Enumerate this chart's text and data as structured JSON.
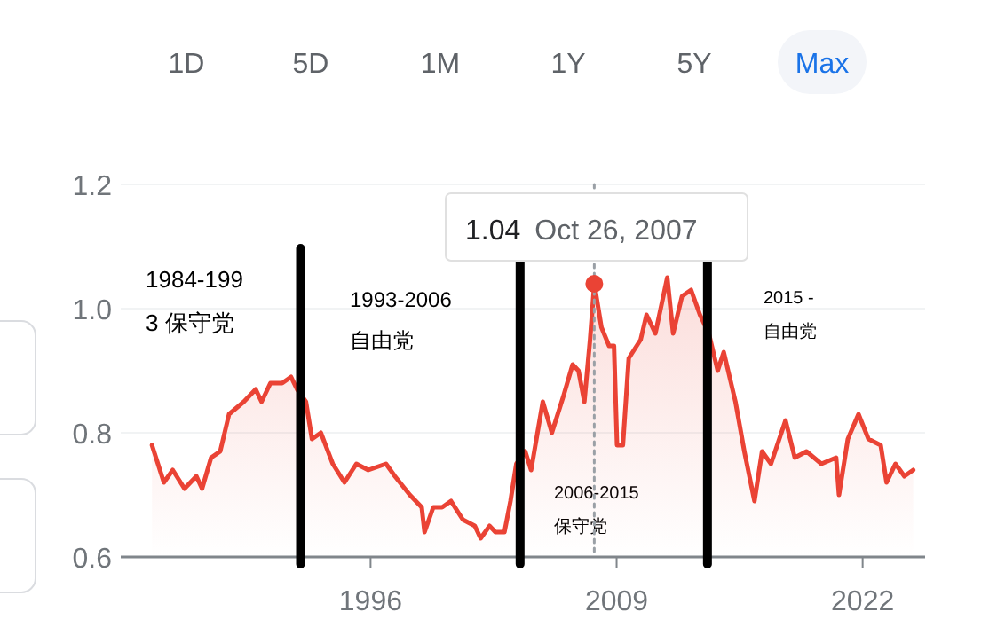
{
  "chart_data": {
    "type": "area",
    "x": [
      1984.45,
      1985.08,
      1985.55,
      1986.17,
      1986.8,
      1987.1,
      1987.58,
      1988.05,
      1988.52,
      1989.3,
      1989.93,
      1990.24,
      1990.71,
      1991.33,
      1991.8,
      1992.12,
      1992.59,
      1992.9,
      1993.37,
      1994.0,
      1994.62,
      1995.25,
      1995.88,
      1996.82,
      1997.29,
      1998.07,
      1998.7,
      1998.85,
      1999.31,
      1999.78,
      2000.25,
      2000.88,
      2001.51,
      2001.82,
      2002.29,
      2002.6,
      2003.07,
      2003.39,
      2003.7,
      2004.17,
      2004.48,
      2005.1,
      2005.58,
      2006.2,
      2006.68,
      2006.99,
      2007.3,
      2007.6,
      2007.82,
      2008.2,
      2008.6,
      2008.86,
      2009.02,
      2009.33,
      2009.64,
      2010.27,
      2010.58,
      2011.05,
      2011.68,
      2011.99,
      2012.46,
      2012.93,
      2013.4,
      2013.87,
      2014.34,
      2014.66,
      2015.28,
      2015.75,
      2016.28,
      2016.69,
      2017.16,
      2017.93,
      2018.41,
      2019.03,
      2019.82,
      2020.6,
      2020.75,
      2021.22,
      2021.78,
      2022.31,
      2022.95,
      2023.26,
      2023.73,
      2024.2,
      2024.67
    ],
    "series": [
      {
        "color": "#ea4335",
        "values": [
          0.78,
          0.72,
          0.74,
          0.71,
          0.73,
          0.71,
          0.76,
          0.77,
          0.83,
          0.85,
          0.87,
          0.85,
          0.88,
          0.88,
          0.89,
          0.87,
          0.85,
          0.79,
          0.8,
          0.75,
          0.72,
          0.75,
          0.74,
          0.75,
          0.73,
          0.7,
          0.68,
          0.64,
          0.68,
          0.68,
          0.69,
          0.66,
          0.65,
          0.63,
          0.65,
          0.64,
          0.64,
          0.69,
          0.75,
          0.77,
          0.74,
          0.85,
          0.8,
          0.86,
          0.91,
          0.9,
          0.85,
          0.95,
          1.04,
          0.97,
          0.94,
          0.94,
          0.78,
          0.78,
          0.92,
          0.95,
          0.99,
          0.96,
          1.05,
          0.96,
          1.02,
          1.03,
          0.99,
          0.96,
          0.9,
          0.93,
          0.85,
          0.77,
          0.69,
          0.77,
          0.75,
          0.82,
          0.76,
          0.77,
          0.75,
          0.76,
          0.7,
          0.79,
          0.83,
          0.79,
          0.78,
          0.72,
          0.75,
          0.73,
          0.74
        ]
      }
    ],
    "xlim": [
      1982.8,
      2025.3
    ],
    "xticks": [
      1996,
      2009,
      2022
    ],
    "ylim": [
      0.6,
      1.2
    ],
    "yticks": [
      0.6,
      0.8,
      {
        "value": 1,
        "label": "1.0"
      },
      1.2
    ],
    "grid": "y",
    "ref_lines": [
      {
        "axis": "x",
        "value": 1992.3,
        "color": "#000000"
      },
      {
        "axis": "x",
        "value": 2003.9,
        "color": "#000000"
      },
      {
        "axis": "x",
        "value": 2013.8,
        "color": "#000000"
      },
      {
        "axis": "x",
        "value": 2007.82,
        "color": "#9aa0a6",
        "line_style": "dotted"
      }
    ],
    "annotations": [
      "1984-199\n3 保守党",
      "1993-2006\n自由党",
      "2006-2015\n保守党",
      "2015 -\n自由党",
      {
        "text": "1.04 Oct 26, 2007",
        "x": 2007.82,
        "y": 1.04
      },
      "1D",
      "5D",
      "1M",
      "1Y",
      "5Y",
      "Max"
    ]
  }
}
